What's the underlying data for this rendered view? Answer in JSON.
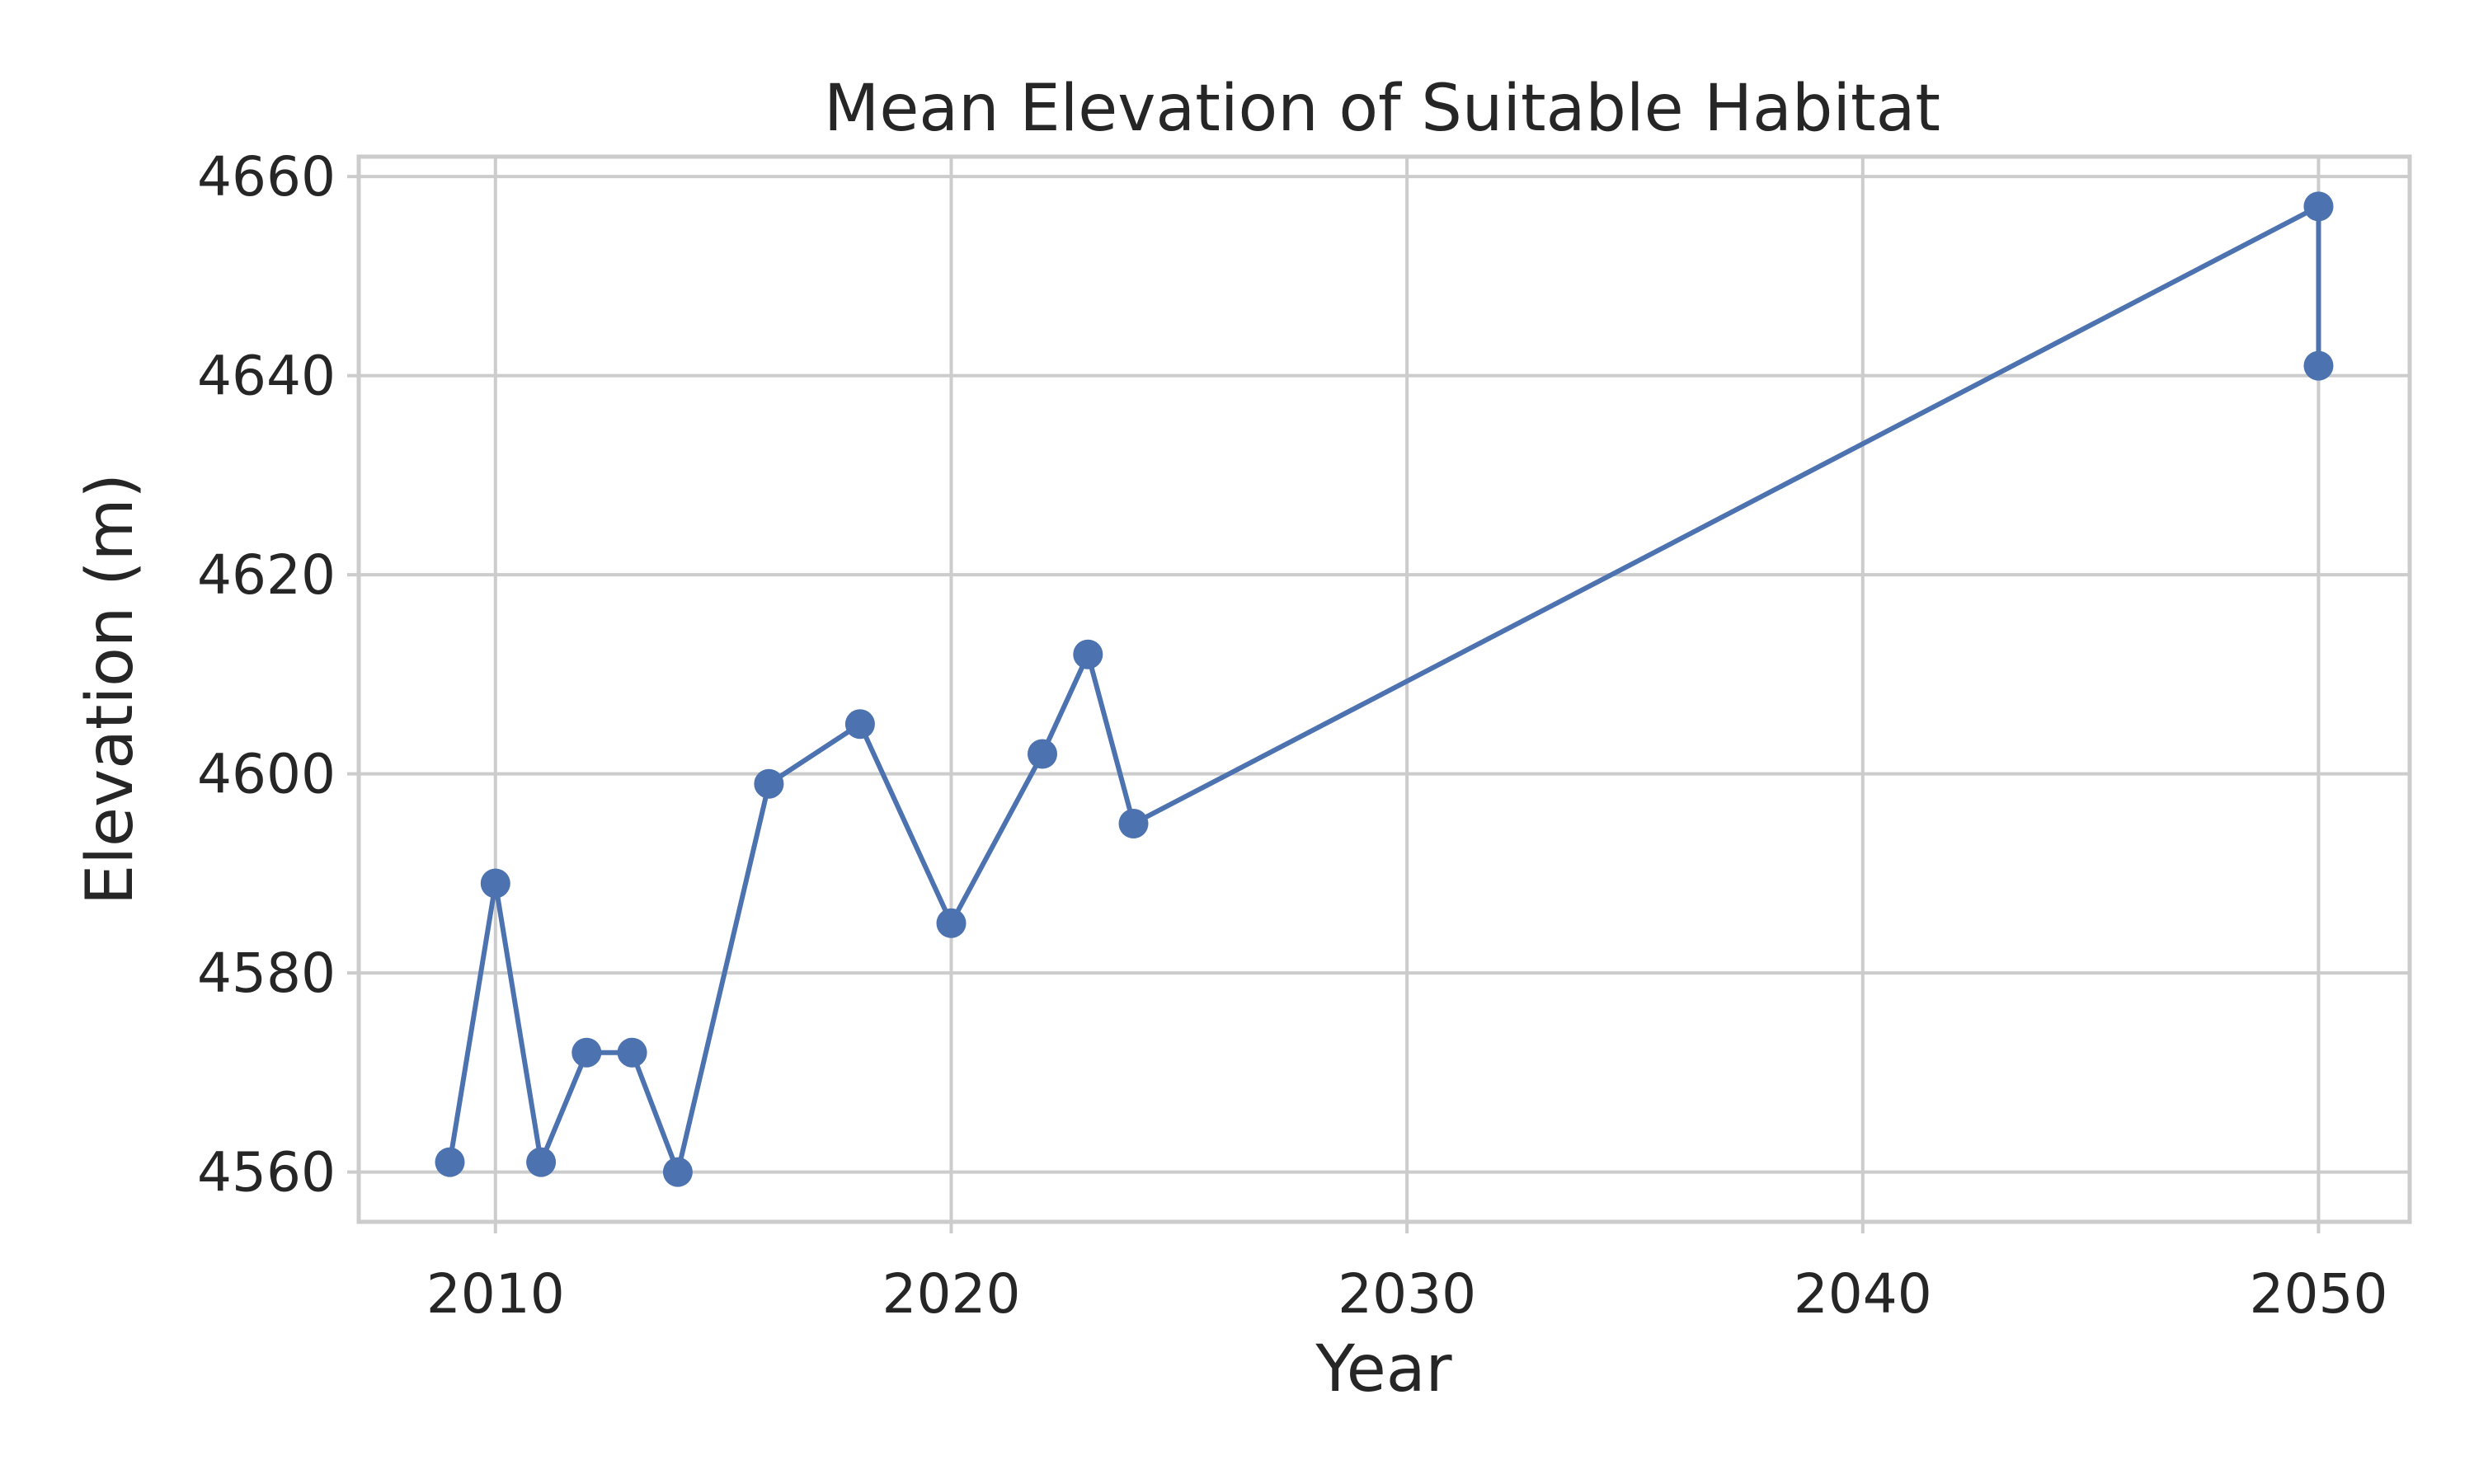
{
  "chart_data": {
    "type": "line",
    "title": "Mean Elevation of Suitable Habitat",
    "xlabel": "Year",
    "ylabel": "Elevation (m)",
    "xlim": [
      2007,
      2052
    ],
    "ylim": [
      4555,
      4662
    ],
    "x_ticks": [
      2010,
      2020,
      2030,
      2040,
      2050
    ],
    "y_ticks": [
      4560,
      4580,
      4600,
      4620,
      4640,
      4660
    ],
    "grid": true,
    "line_color": "#4c72b0",
    "marker": "circle",
    "series": [
      {
        "x": [
          2009,
          2010,
          2011,
          2012,
          2013,
          2014,
          2016,
          2018,
          2020,
          2022,
          2023,
          2024,
          2050,
          2050
        ],
        "y": [
          4561,
          4589,
          4561,
          4572,
          4572,
          4560,
          4599,
          4605,
          4585,
          4602,
          4612,
          4595,
          4657,
          4641
        ]
      }
    ]
  }
}
